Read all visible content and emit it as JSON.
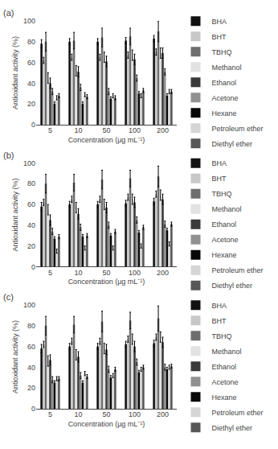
{
  "chart_data": [
    {
      "type": "bar",
      "title": "(a)",
      "xlabel": "Concentration (μg mL⁻¹)",
      "ylabel": "Antioxidant activity (%)",
      "categories": [
        "5",
        "10",
        "50",
        "100",
        "200"
      ],
      "series": [
        {
          "name": "BHA",
          "color": "#111111",
          "values": [
            78,
            80,
            80,
            81,
            83
          ],
          "errors": [
            4,
            3,
            3,
            3,
            3
          ]
        },
        {
          "name": "BHT",
          "color": "#c8c8c8",
          "values": [
            62,
            65,
            65,
            67,
            70
          ],
          "errors": [
            3,
            3,
            3,
            3,
            3
          ]
        },
        {
          "name": "TBHQ",
          "color": "#6e6e6e",
          "values": [
            80,
            81,
            84,
            85,
            90
          ],
          "errors": [
            9,
            8,
            9,
            8,
            10
          ]
        },
        {
          "name": "Methanol",
          "color": "#e2e2e2",
          "values": [
            45,
            52,
            65,
            67,
            69
          ],
          "errors": [
            5,
            5,
            5,
            5,
            5
          ]
        },
        {
          "name": "Ethanol",
          "color": "#3a3a3a",
          "values": [
            40,
            51,
            61,
            63,
            69
          ],
          "errors": [
            5,
            5,
            5,
            5,
            5
          ]
        },
        {
          "name": "Acetone",
          "color": "#919191",
          "values": [
            32,
            36,
            32,
            45,
            51
          ],
          "errors": [
            3,
            3,
            3,
            3,
            3
          ]
        },
        {
          "name": "Hexane",
          "color": "#080808",
          "values": [
            20,
            20,
            25,
            30,
            28
          ],
          "errors": [
            2,
            2,
            2,
            2,
            2
          ]
        },
        {
          "name": "Petroleum ether",
          "color": "#d5d5d5",
          "values": [
            26,
            29,
            28,
            28,
            32
          ],
          "errors": [
            2,
            2,
            2,
            2,
            2
          ]
        },
        {
          "name": "Diethyl ether",
          "color": "#575757",
          "values": [
            28,
            27,
            26,
            33,
            32
          ],
          "errors": [
            2,
            2,
            2,
            2,
            2
          ]
        }
      ],
      "ylim": [
        0,
        100
      ],
      "yticks": [
        0,
        20,
        40,
        60,
        80,
        100
      ],
      "grid": false,
      "legend": "right"
    },
    {
      "type": "bar",
      "title": "(b)",
      "xlabel": "Concentration (μg mL⁻¹)",
      "ylabel": "Antioxidant activity (%)",
      "categories": [
        "5",
        "10",
        "50",
        "100",
        "200"
      ],
      "series": [
        {
          "name": "BHA",
          "color": "#111111",
          "values": [
            58,
            60,
            60,
            61,
            63
          ],
          "errors": [
            4,
            3,
            3,
            3,
            3
          ]
        },
        {
          "name": "BHT",
          "color": "#c8c8c8",
          "values": [
            62,
            65,
            65,
            67,
            70
          ],
          "errors": [
            3,
            3,
            3,
            3,
            3
          ]
        },
        {
          "name": "TBHQ",
          "color": "#6e6e6e",
          "values": [
            80,
            81,
            84,
            85,
            87
          ],
          "errors": [
            9,
            8,
            9,
            8,
            10
          ]
        },
        {
          "name": "Methanol",
          "color": "#e2e2e2",
          "values": [
            55,
            57,
            60,
            65,
            69
          ],
          "errors": [
            5,
            5,
            5,
            5,
            5
          ]
        },
        {
          "name": "Ethanol",
          "color": "#3a3a3a",
          "values": [
            45,
            51,
            57,
            62,
            65
          ],
          "errors": [
            5,
            5,
            5,
            5,
            5
          ]
        },
        {
          "name": "Acetone",
          "color": "#919191",
          "values": [
            34,
            38,
            40,
            45,
            41
          ],
          "errors": [
            3,
            3,
            3,
            3,
            3
          ]
        },
        {
          "name": "Hexane",
          "color": "#080808",
          "values": [
            27,
            29,
            30,
            33,
            35
          ],
          "errors": [
            2,
            2,
            2,
            2,
            2
          ]
        },
        {
          "name": "Petroleum ether",
          "color": "#d5d5d5",
          "values": [
            15,
            18,
            18,
            20,
            22
          ],
          "errors": [
            2,
            2,
            2,
            2,
            2
          ]
        },
        {
          "name": "Diethyl ether",
          "color": "#575757",
          "values": [
            29,
            30,
            34,
            38,
            41
          ],
          "errors": [
            2,
            2,
            2,
            2,
            2
          ]
        }
      ],
      "ylim": [
        0,
        100
      ],
      "yticks": [
        0,
        20,
        40,
        60,
        80,
        100
      ],
      "grid": false,
      "legend": "right"
    },
    {
      "type": "bar",
      "title": "(c)",
      "xlabel": "Concentration (μg mL⁻¹)",
      "ylabel": "Antioxidant activity (%)",
      "categories": [
        "5",
        "10",
        "50",
        "100",
        "200"
      ],
      "series": [
        {
          "name": "BHA",
          "color": "#111111",
          "values": [
            58,
            60,
            60,
            62,
            63
          ],
          "errors": [
            4,
            3,
            3,
            3,
            3
          ]
        },
        {
          "name": "BHT",
          "color": "#c8c8c8",
          "values": [
            62,
            65,
            65,
            67,
            69
          ],
          "errors": [
            3,
            3,
            3,
            3,
            3
          ]
        },
        {
          "name": "TBHQ",
          "color": "#6e6e6e",
          "values": [
            80,
            81,
            84,
            85,
            87
          ],
          "errors": [
            9,
            8,
            10,
            8,
            12
          ]
        },
        {
          "name": "Methanol",
          "color": "#e2e2e2",
          "values": [
            46,
            52,
            58,
            67,
            69
          ],
          "errors": [
            5,
            5,
            5,
            5,
            5
          ]
        },
        {
          "name": "Ethanol",
          "color": "#3a3a3a",
          "values": [
            47,
            50,
            57,
            60,
            64
          ],
          "errors": [
            5,
            5,
            5,
            5,
            5
          ]
        },
        {
          "name": "Acetone",
          "color": "#919191",
          "values": [
            28,
            32,
            38,
            45,
            40
          ],
          "errors": [
            3,
            3,
            3,
            3,
            3
          ]
        },
        {
          "name": "Hexane",
          "color": "#080808",
          "values": [
            25,
            25,
            30,
            35,
            38
          ],
          "errors": [
            2,
            2,
            2,
            2,
            2
          ]
        },
        {
          "name": "Petroleum ether",
          "color": "#d5d5d5",
          "values": [
            29,
            34,
            32,
            38,
            40
          ],
          "errors": [
            2,
            2,
            2,
            2,
            2
          ]
        },
        {
          "name": "Diethyl ether",
          "color": "#575757",
          "values": [
            29,
            31,
            38,
            40,
            41
          ],
          "errors": [
            2,
            2,
            2,
            2,
            2
          ]
        }
      ],
      "ylim": [
        0,
        100
      ],
      "yticks": [
        0,
        20,
        40,
        60,
        80,
        100
      ],
      "grid": false,
      "legend": "right"
    }
  ]
}
